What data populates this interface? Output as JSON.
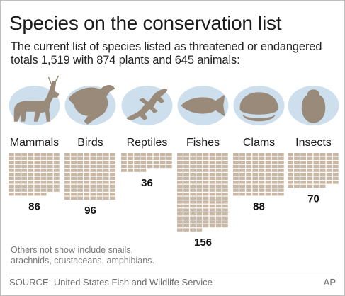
{
  "title": "Species on the conservation list",
  "subtitle": "The current list of species listed as threatened or endangered totals 1,519 with 874 plants and 645 animals:",
  "note": "Others not show include snails, arachnids, crustaceans, amphibians.",
  "source": "SOURCE: United States Fish and Wildlife Service",
  "credit": "AP",
  "colors": {
    "square": "#c8b8a5",
    "silhouette": "#9a8a7a",
    "splash": "#c4d9ea"
  },
  "icons": [
    "deer-icon",
    "eagle-icon",
    "lizard-icon",
    "fish-icon",
    "clam-icon",
    "beetle-icon"
  ],
  "chart_data": {
    "type": "bar",
    "unit_style": "pictogram grid, one square per species",
    "categories": [
      "Mammals",
      "Birds",
      "Reptiles",
      "Fishes",
      "Clams",
      "Insects"
    ],
    "values": [
      86,
      96,
      36,
      156,
      88,
      70
    ],
    "title": "Species on the conservation list"
  }
}
